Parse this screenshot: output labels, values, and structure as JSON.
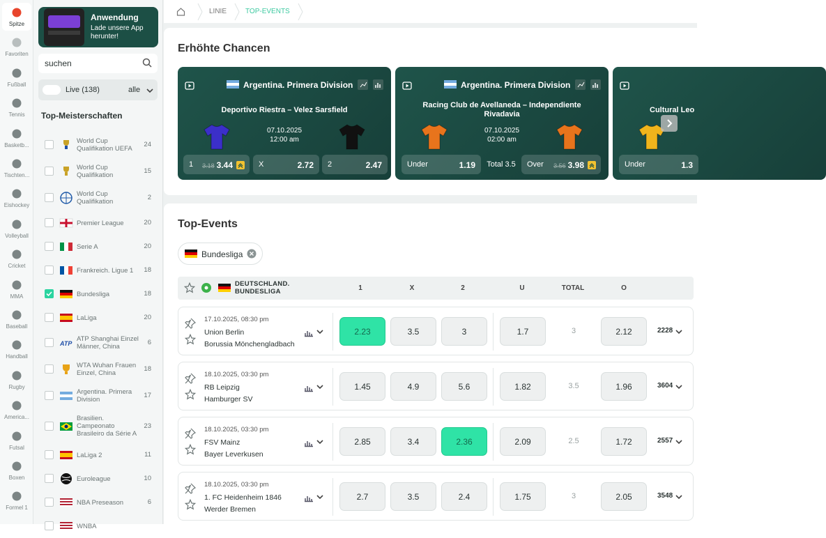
{
  "nav": {
    "items": [
      "Spitze",
      "Favoriten",
      "Fußball",
      "Tennis",
      "Basketb...",
      "Tischten...",
      "Eishockey",
      "Volleyball",
      "Cricket",
      "MMA",
      "Baseball",
      "Handball",
      "Rugby",
      "America...",
      "Futsal",
      "Boxen",
      "Formel 1"
    ]
  },
  "banner": {
    "title": "Anwendung",
    "text": "Lade unsere App herunter!"
  },
  "sidebar": {
    "search": "suchen",
    "live": "Live (138)",
    "filter": "alle",
    "title": "Top-Meisterschaften",
    "leagues": [
      {
        "name": "World Cup Qualifikation UEFA",
        "count": "24",
        "checked": false
      },
      {
        "name": "World Cup Qualifikation",
        "count": "15",
        "checked": false
      },
      {
        "name": "World Cup Qualifikation",
        "count": "2",
        "checked": false
      },
      {
        "name": "Premier League",
        "count": "20",
        "checked": false
      },
      {
        "name": "Serie A",
        "count": "20",
        "checked": false
      },
      {
        "name": "Frankreich. Ligue 1",
        "count": "18",
        "checked": false
      },
      {
        "name": "Bundesliga",
        "count": "18",
        "checked": true
      },
      {
        "name": "LaLiga",
        "count": "20",
        "checked": false
      },
      {
        "name": "ATP Shanghai Einzel Männer, China",
        "count": "6",
        "checked": false
      },
      {
        "name": "WTA Wuhan Frauen Einzel, China",
        "count": "18",
        "checked": false
      },
      {
        "name": "Argentina. Primera Division",
        "count": "17",
        "checked": false
      },
      {
        "name": "Brasilien. Campeonato Brasileiro da Série A",
        "count": "23",
        "checked": false
      },
      {
        "name": "LaLiga 2",
        "count": "11",
        "checked": false
      },
      {
        "name": "Euroleague",
        "count": "10",
        "checked": false
      },
      {
        "name": "NBA Preseason",
        "count": "6",
        "checked": false
      },
      {
        "name": "WNBA",
        "count": "",
        "checked": false
      }
    ]
  },
  "breadcrumb": [
    "LINIE",
    "TOP-EVENTS"
  ],
  "boosted": {
    "title": "Erhöhte Chancen",
    "cards": [
      {
        "league": "Argentina. Primera Division",
        "match": "Deportivo Riestra – Velez Sarsfield",
        "date": "07.10.2025",
        "time": "12:00 am",
        "home_shirt": "#3b2fc9",
        "away_shirt": "#111111",
        "odds": [
          {
            "label": "1",
            "old": "3.18",
            "value": "3.44"
          },
          {
            "label": "X",
            "value": "2.72"
          },
          {
            "label": "2",
            "value": "2.47"
          }
        ]
      },
      {
        "league": "Argentina. Primera Division",
        "match": "Racing Club de Avellaneda – Independiente Rivadavia",
        "date": "07.10.2025",
        "time": "02:00 am",
        "home_shirt": "#e8741c",
        "away_shirt": "#e8741c",
        "odds": [
          {
            "label": "Under",
            "value": "1.19"
          },
          {
            "label": "Over",
            "old": "3.56",
            "value": "3.98"
          }
        ],
        "middle": "Total 3.5"
      },
      {
        "match": "Cultural Leo",
        "home_shirt": "#f0b41c",
        "odds": [
          {
            "label": "Under",
            "value": "1.3"
          }
        ]
      }
    ]
  },
  "events": {
    "title": "Top-Events",
    "chip": "Bundesliga",
    "league": "DEUTSCHLAND. BUNDESLIGA",
    "columns": [
      "1",
      "X",
      "2",
      "U",
      "TOTAL",
      "O"
    ],
    "matches": [
      {
        "datetime": "17.10.2025, 08:30 pm",
        "home": "Union Berlin",
        "away": "Borussia Mönchengladbach",
        "odds": [
          {
            "value": "2.23",
            "selected": true
          },
          {
            "value": "3.5",
            "selected": false
          },
          {
            "value": "3",
            "selected": false
          }
        ],
        "under": "1.7",
        "total": "3",
        "over": "2.12",
        "markets": "2228"
      },
      {
        "datetime": "18.10.2025, 03:30 pm",
        "home": "RB Leipzig",
        "away": "Hamburger SV",
        "odds": [
          {
            "value": "1.45",
            "selected": false
          },
          {
            "value": "4.9",
            "selected": false
          },
          {
            "value": "5.6",
            "selected": false
          }
        ],
        "under": "1.82",
        "total": "3.5",
        "over": "1.96",
        "markets": "3604"
      },
      {
        "datetime": "18.10.2025, 03:30 pm",
        "home": "FSV Mainz",
        "away": "Bayer Leverkusen",
        "odds": [
          {
            "value": "2.85",
            "selected": false
          },
          {
            "value": "3.4",
            "selected": false
          },
          {
            "value": "2.36",
            "selected": true
          }
        ],
        "under": "2.09",
        "total": "2.5",
        "over": "1.72",
        "markets": "2557"
      },
      {
        "datetime": "18.10.2025, 03:30 pm",
        "home": "1. FC Heidenheim 1846",
        "away": "Werder Bremen",
        "odds": [
          {
            "value": "2.7",
            "selected": false
          },
          {
            "value": "3.5",
            "selected": false
          },
          {
            "value": "2.4",
            "selected": false
          }
        ],
        "under": "1.75",
        "total": "3",
        "over": "2.05",
        "markets": "3548"
      }
    ]
  }
}
